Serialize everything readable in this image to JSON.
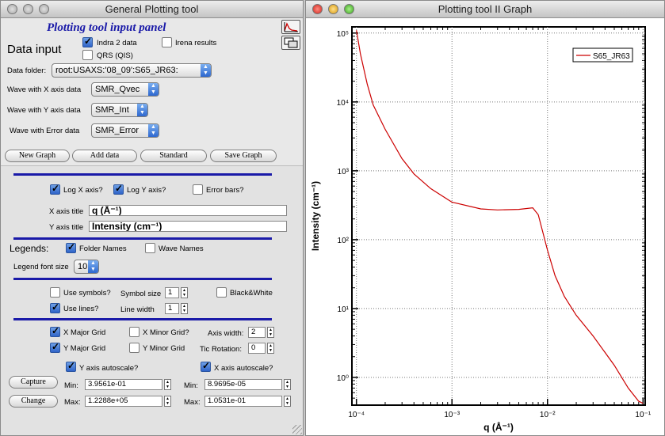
{
  "left_window": {
    "title": "General Plotting tool",
    "panel_title": "Plotting tool input panel",
    "data_input_label": "Data input",
    "cb_indra": "Indra 2 data",
    "cb_irena": "Irena results",
    "cb_qrs": "QRS (QIS)",
    "data_folder_label": "Data folder:",
    "data_folder_value": "root:USAXS:'08_09':S65_JR63:",
    "wave_x_label": "Wave with X axis data",
    "wave_x_value": "SMR_Qvec",
    "wave_y_label": "Wave with Y axis data",
    "wave_y_value": "SMR_Int",
    "wave_err_label": "Wave with Error data",
    "wave_err_value": "SMR_Error",
    "btn_new_graph": "New Graph",
    "btn_add_data": "Add data",
    "btn_standard": "Standard",
    "btn_save_graph": "Save Graph",
    "cb_log_x": "Log X axis?",
    "cb_log_y": "Log Y axis?",
    "cb_error_bars": "Error bars?",
    "x_title_label": "X axis title",
    "x_title_value": "q (Å⁻¹)",
    "y_title_label": "Y axis title",
    "y_title_value": "Intensity (cm⁻¹)",
    "legends_label": "Legends:",
    "cb_folder_names": "Folder Names",
    "cb_wave_names": "Wave Names",
    "legend_font_label": "Legend font size",
    "legend_font_value": "10",
    "cb_use_symbols": "Use symbols?",
    "symbol_size_label": "Symbol size",
    "symbol_size_value": "1",
    "cb_black_white": "Black&White",
    "cb_use_lines": "Use lines?",
    "line_width_label": "Line width",
    "line_width_value": "1",
    "cb_x_major": "X Major Grid",
    "cb_x_minor": "X Minor Grid?",
    "axis_width_label": "Axis width:",
    "axis_width_value": "2",
    "cb_y_major": "Y Major Grid",
    "cb_y_minor": "Y Minor Grid",
    "tic_rotation_label": "Tic Rotation:",
    "tic_rotation_value": "0",
    "cb_y_autoscale": "Y axis autoscale?",
    "cb_x_autoscale": "X axis autoscale?",
    "btn_capture": "Capture",
    "btn_change": "Change",
    "min_label": "Min:",
    "max_label": "Max:",
    "y_min_value": "3.9561e-01",
    "y_max_value": "1.2288e+05",
    "x_min_value": "8.9695e-05",
    "x_max_value": "1.0531e-01"
  },
  "right_window": {
    "title": "Plotting tool II Graph"
  },
  "chart_data": {
    "type": "line",
    "xlabel": "q (Å⁻¹)",
    "ylabel": "Intensity (cm⁻¹)",
    "x_scale": "log",
    "y_scale": "log",
    "xlim": [
      8.9695e-05,
      0.10531
    ],
    "ylim": [
      0.39561,
      122880
    ],
    "x_ticks": [
      0.0001,
      0.001,
      0.01,
      0.1
    ],
    "x_tick_labels": [
      "10⁻⁴",
      "10⁻³",
      "10⁻²",
      "10⁻¹"
    ],
    "y_ticks": [
      1,
      10,
      100,
      1000,
      10000,
      100000
    ],
    "y_tick_labels": [
      "10⁰",
      "10¹",
      "10²",
      "10³",
      "10⁴",
      "10⁵"
    ],
    "grid": true,
    "legend_position": "top-right",
    "series": [
      {
        "name": "S65_JR63",
        "color": "#cc0000",
        "x": [
          0.0001,
          0.00011,
          0.00013,
          0.00015,
          0.0002,
          0.0003,
          0.0004,
          0.0006,
          0.001,
          0.002,
          0.003,
          0.005,
          0.007,
          0.008,
          0.01,
          0.012,
          0.015,
          0.02,
          0.03,
          0.05,
          0.07,
          0.09,
          0.1
        ],
        "y": [
          110000,
          50000,
          18000,
          9000,
          4000,
          1500,
          900,
          550,
          350,
          280,
          270,
          275,
          290,
          230,
          70,
          30,
          15,
          8,
          4,
          1.5,
          0.7,
          0.45,
          0.42
        ]
      }
    ]
  }
}
